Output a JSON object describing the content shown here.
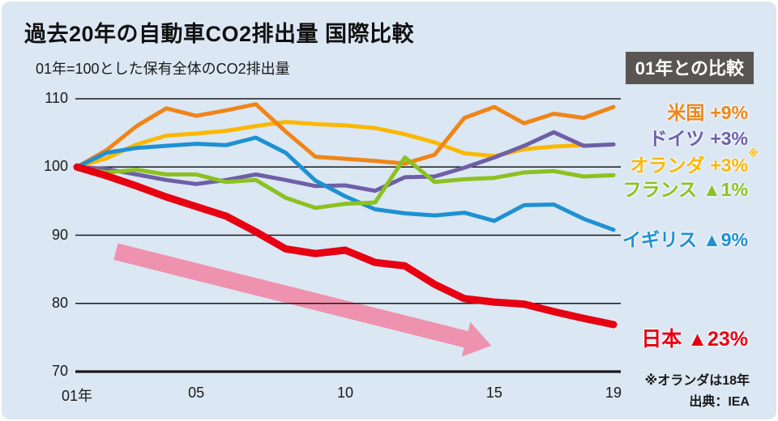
{
  "header": {
    "title": "過去20年の自動車CO2排出量 国際比較",
    "subtitle": "01年=100とした保有全体のCO2排出量"
  },
  "legend_box_label": "01年との比較",
  "note": "※オランダは18年",
  "source": "出典：IEA",
  "colors": {
    "background": "#dbe7f3",
    "frame": "#ffffff",
    "axis": "#1a1a1a",
    "legend_box_bg": "#595552",
    "legend_box_text": "#ffffff",
    "arrow": "#ef92af"
  },
  "chart_data": {
    "type": "line",
    "title": "過去20年の自動車CO2排出量 国際比較",
    "subtitle": "01年=100とした保有全体のCO2排出量",
    "x_start_year": 2001,
    "x_tick_years": [
      2001,
      2005,
      2010,
      2015,
      2019
    ],
    "x_tick_labels": [
      "01年",
      "05",
      "10",
      "15",
      "19"
    ],
    "ylim": [
      70,
      110
    ],
    "y_ticks": [
      110,
      100,
      90,
      80,
      70
    ],
    "grid": true,
    "legend_position": "right",
    "series": [
      {
        "id": "us",
        "name": "米国",
        "change_label": "+9%",
        "color": "#F08518",
        "values": [
          100,
          102.5,
          106,
          108.6,
          107.5,
          108.3,
          109.2,
          105.2,
          101.5,
          101.2,
          100.9,
          100.5,
          101.8,
          107.2,
          108.8,
          106.4,
          107.8,
          107.2,
          108.8
        ]
      },
      {
        "id": "de",
        "name": "ドイツ",
        "change_label": "+3%",
        "color": "#6E5FA7",
        "values": [
          100,
          99.7,
          98.9,
          98.1,
          97.5,
          98.1,
          98.9,
          98.1,
          97.2,
          97.3,
          96.5,
          98.5,
          98.6,
          99.9,
          101.4,
          103.1,
          105.1,
          103.1,
          103.3
        ]
      },
      {
        "id": "nl",
        "name": "オランダ",
        "change_label": "+3%",
        "superscript": "※",
        "color": "#FBB800",
        "values": [
          100,
          101.3,
          103.3,
          104.6,
          104.9,
          105.3,
          106,
          106.6,
          106.3,
          106.1,
          105.7,
          104.8,
          103.6,
          102,
          101.6,
          102.6,
          103,
          103.2
        ]
      },
      {
        "id": "fr",
        "name": "フランス",
        "change_label": "▲1%",
        "color": "#8CC120",
        "values": [
          100,
          99.2,
          99.6,
          98.9,
          98.9,
          97.8,
          98.1,
          95.5,
          94,
          94.6,
          94.8,
          101.4,
          97.8,
          98.2,
          98.4,
          99.2,
          99.4,
          98.6,
          98.8
        ]
      },
      {
        "id": "uk",
        "name": "イギリス",
        "change_label": "▲9%",
        "color": "#1E91D2",
        "values": [
          100,
          102.1,
          102.8,
          103.1,
          103.4,
          103.2,
          104.3,
          102.1,
          98,
          95.7,
          93.8,
          93.2,
          92.9,
          93.3,
          92.1,
          94.4,
          94.5,
          92.4,
          90.8
        ]
      },
      {
        "id": "jp",
        "name": "日本",
        "change_label": "▲23%",
        "color": "#E60012",
        "values": [
          100,
          98.7,
          97.2,
          95.6,
          94.2,
          92.8,
          90.5,
          88,
          87.3,
          87.8,
          86,
          85.5,
          82.8,
          80.7,
          80.2,
          79.9,
          78.8,
          77.8,
          76.9
        ]
      }
    ],
    "annotation_arrow": {
      "from_year": 2002.3,
      "from_value": 87.6,
      "to_year": 2014.9,
      "to_value": 73.8
    }
  }
}
